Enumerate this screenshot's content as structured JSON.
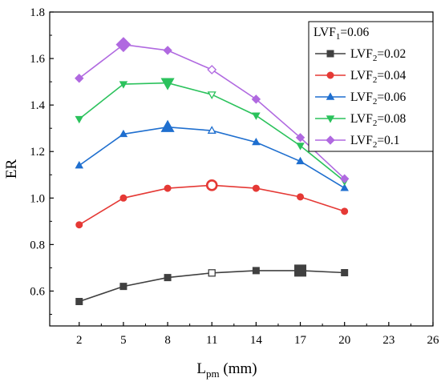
{
  "chart_data": {
    "type": "line",
    "xlabel": {
      "main": "L",
      "sub": "pm",
      "unit": " (mm)"
    },
    "ylabel": "ER",
    "xlim": [
      0,
      26
    ],
    "ylim": [
      0.45,
      1.8
    ],
    "xticks": [
      2,
      5,
      8,
      11,
      14,
      17,
      20,
      23,
      26
    ],
    "yticks": [
      0.6,
      0.8,
      1.0,
      1.2,
      1.4,
      1.6,
      1.8
    ],
    "ytick_labels": [
      "0.6",
      "0.8",
      "1.0",
      "1.2",
      "1.4",
      "1.6",
      "1.8"
    ],
    "legend": {
      "placement": "top-right",
      "header": {
        "main": "LVF",
        "sub": "1",
        "rest": "=0.06"
      }
    },
    "x": [
      2,
      5,
      8,
      11,
      14,
      17,
      20
    ],
    "series": [
      {
        "name": "LVF2=0.02",
        "label_main": "LVF",
        "label_sub": "2",
        "label_rest": "=0.02",
        "color": "#404040",
        "marker": "square",
        "values": [
          0.555,
          0.62,
          0.658,
          0.678,
          0.688,
          0.688,
          0.679
        ],
        "highlight_index": 5,
        "open_index": 3
      },
      {
        "name": "LVF2=0.04",
        "label_main": "LVF",
        "label_sub": "2",
        "label_rest": "=0.04",
        "color": "#e53935",
        "marker": "circle",
        "values": [
          0.885,
          1.0,
          1.042,
          1.055,
          1.042,
          1.005,
          0.943
        ],
        "highlight_index": 3,
        "open_index": 3
      },
      {
        "name": "LVF2=0.06",
        "label_main": "LVF",
        "label_sub": "2",
        "label_rest": "=0.06",
        "color": "#1f6fcf",
        "marker": "triangle-up",
        "values": [
          1.14,
          1.275,
          1.305,
          1.29,
          1.24,
          1.158,
          1.043
        ],
        "highlight_index": 2,
        "open_index": 3
      },
      {
        "name": "LVF2=0.08",
        "label_main": "LVF",
        "label_sub": "2",
        "label_rest": "=0.08",
        "color": "#2bc25c",
        "marker": "triangle-down",
        "values": [
          1.34,
          1.49,
          1.495,
          1.445,
          1.355,
          1.225,
          1.072
        ],
        "highlight_index": 2,
        "open_index": 3
      },
      {
        "name": "LVF2=0.1",
        "label_main": "LVF",
        "label_sub": "2",
        "label_rest": "=0.1",
        "color": "#b069e0",
        "marker": "diamond",
        "values": [
          1.515,
          1.66,
          1.635,
          1.552,
          1.425,
          1.26,
          1.083
        ],
        "highlight_index": 1,
        "open_index": 3
      }
    ]
  }
}
